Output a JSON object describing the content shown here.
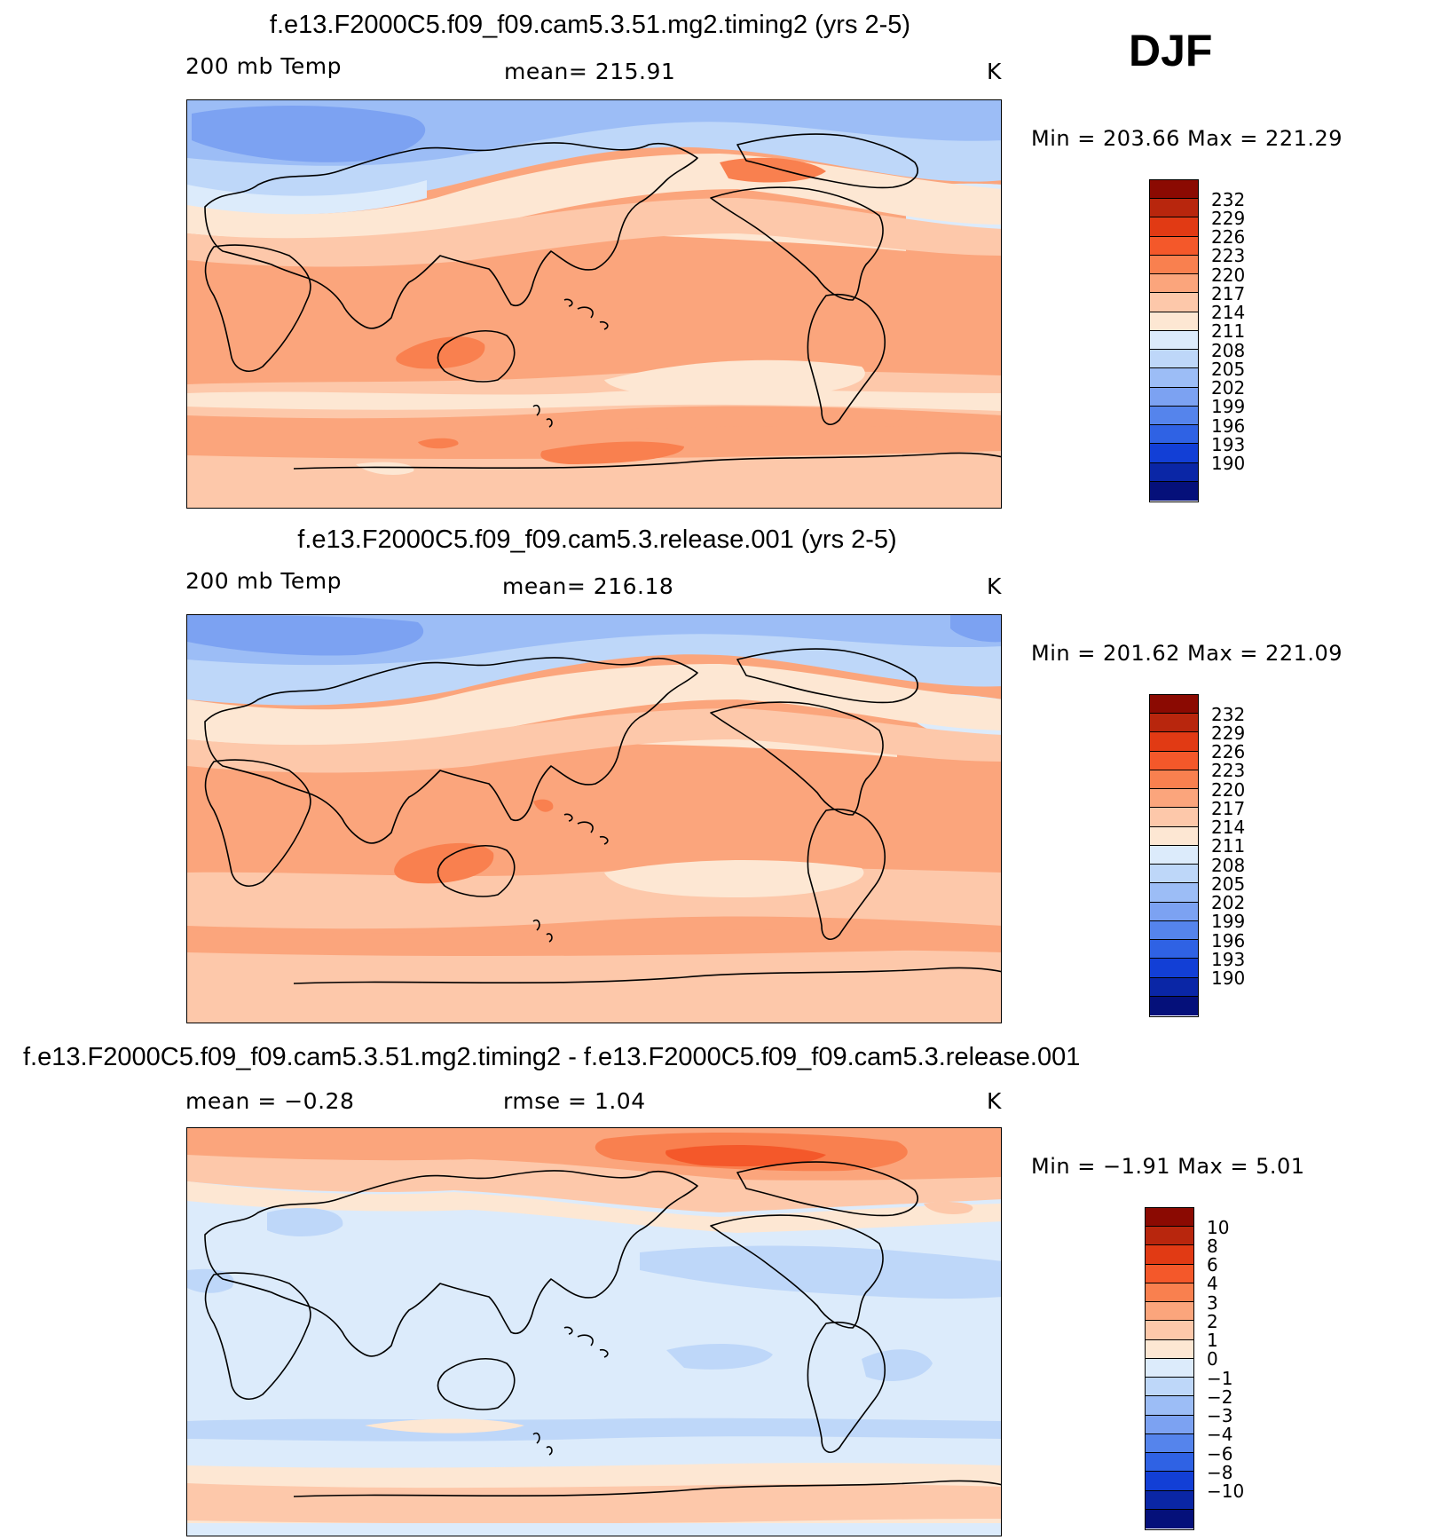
{
  "season": "DJF",
  "panels": [
    {
      "title": "f.e13.F2000C5.f09_f09.cam5.3.51.mg2.timing2 (yrs 2-5)",
      "left_label": "200 mb Temp",
      "center_label": "mean=  215.91",
      "units": "K",
      "min_max": "Min  =  203.66  Max  =  221.29"
    },
    {
      "title": "f.e13.F2000C5.f09_f09.cam5.3.release.001 (yrs 2-5)",
      "left_label": "200 mb Temp",
      "center_label": "mean=  216.18",
      "units": "K",
      "min_max": "Min  =  201.62  Max  =  221.09"
    },
    {
      "title": "f.e13.F2000C5.f09_f09.cam5.3.51.mg2.timing2 - f.e13.F2000C5.f09_f09.cam5.3.release.001",
      "left_label": "mean  =    −0.28",
      "center_label": "rmse  =      1.04",
      "units": "K",
      "min_max": "Min  =    −1.91  Max  =      5.01"
    }
  ],
  "colorbar_abs": {
    "labels": [
      "232",
      "229",
      "226",
      "223",
      "220",
      "217",
      "214",
      "211",
      "208",
      "205",
      "202",
      "199",
      "196",
      "193",
      "190"
    ],
    "colors": [
      "#8b0a02",
      "#b8260d",
      "#e13a14",
      "#f4582a",
      "#f9804f",
      "#fba57c",
      "#fdc8aa",
      "#fde7d3",
      "#dcebfb",
      "#bed7f9",
      "#9cbdf6",
      "#7ca2f2",
      "#5584ec",
      "#2f62e4",
      "#123fd6",
      "#0a26a6",
      "#05107a"
    ]
  },
  "colorbar_diff": {
    "labels": [
      "10",
      "8",
      "6",
      "4",
      "3",
      "2",
      "1",
      "0",
      "−1",
      "−2",
      "−3",
      "−4",
      "−6",
      "−8",
      "−10"
    ],
    "colors": [
      "#8b0a02",
      "#b8260d",
      "#e13a14",
      "#f4582a",
      "#f9804f",
      "#fba57c",
      "#fdc8aa",
      "#fde7d3",
      "#dcebfb",
      "#bed7f9",
      "#9cbdf6",
      "#7ca2f2",
      "#5584ec",
      "#2f62e4",
      "#123fd6",
      "#0a26a6",
      "#05107a"
    ]
  },
  "field_colors": {
    "warm_strong": "#f4582a",
    "warm_mid": "#f9804f",
    "warm": "#fba57c",
    "warm_light": "#fdc8aa",
    "neutral_warm": "#fde7d3",
    "cool_pale": "#dcebfb",
    "cool_light": "#bed7f9",
    "cool": "#9cbdf6",
    "cool_mid": "#7ca2f2"
  }
}
